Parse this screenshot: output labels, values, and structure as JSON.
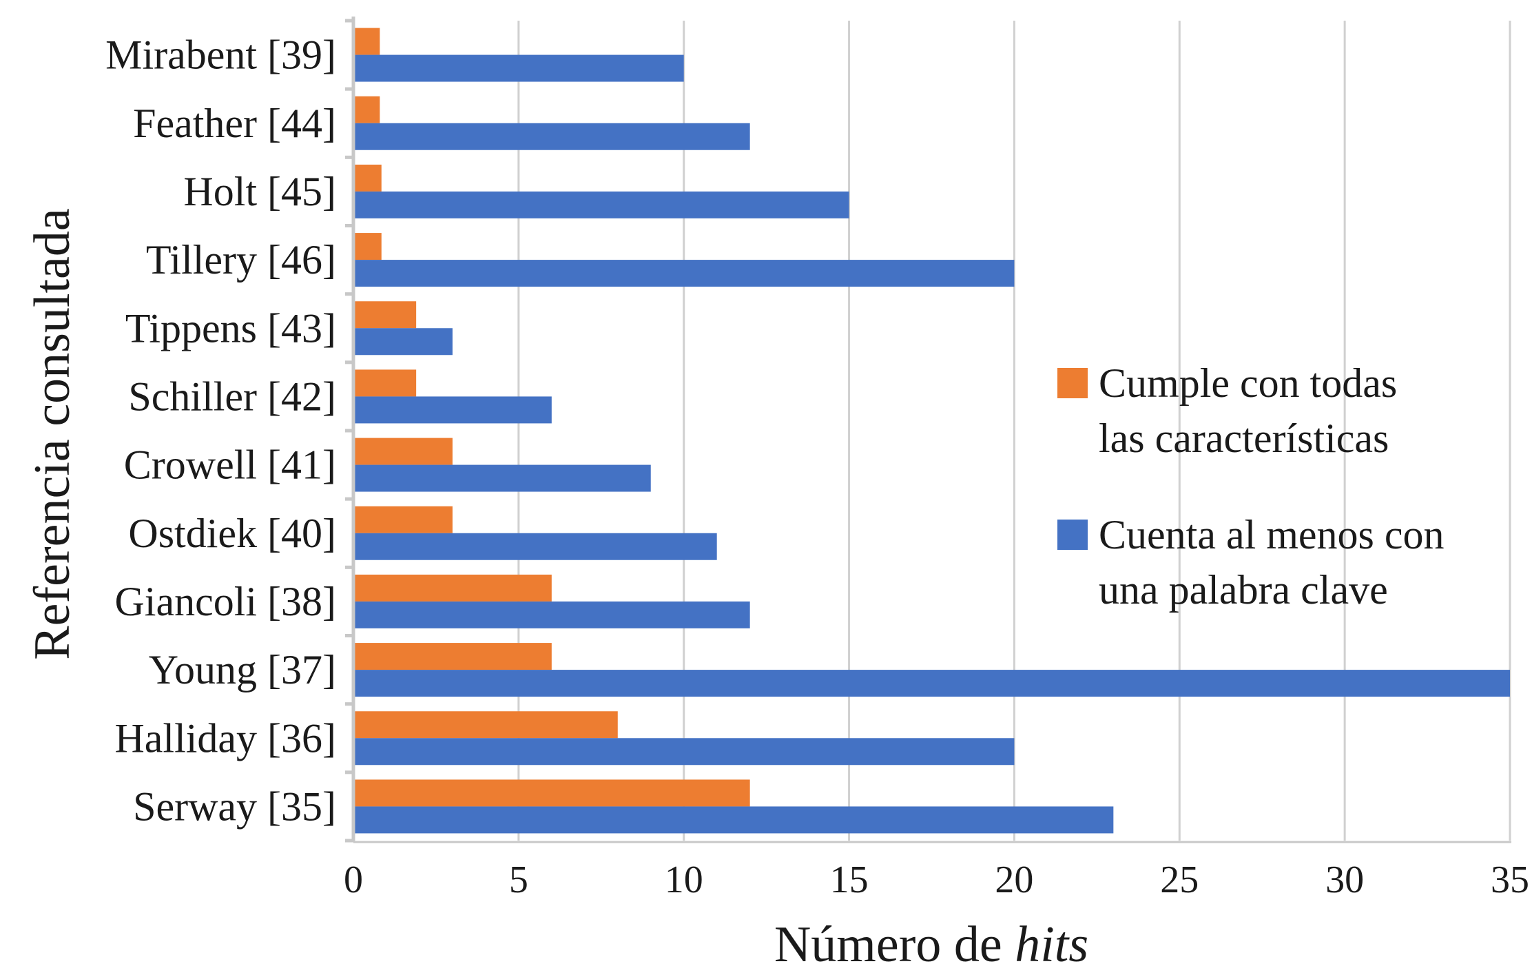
{
  "chart_data": {
    "type": "bar",
    "orientation": "horizontal",
    "categories": [
      "Mirabent [39]",
      "Feather [44]",
      "Holt [45]",
      "Tillery [46]",
      "Tippens [43]",
      "Schiller [42]",
      "Crowell [41]",
      "Ostdiek [40]",
      "Giancoli [38]",
      "Young [37]",
      "Halliday [36]",
      "Serway [35]"
    ],
    "series": [
      {
        "name": "Cumple con todas las características",
        "legend_lines": [
          "Cumple con todas",
          "las características"
        ],
        "color": "#ED7D31",
        "values": [
          0.8,
          0.8,
          0.85,
          0.85,
          1.9,
          1.9,
          3,
          3,
          6,
          6,
          8,
          12
        ]
      },
      {
        "name": "Cuenta al menos con una palabra clave",
        "legend_lines": [
          "Cuenta al menos con",
          "una palabra clave"
        ],
        "color": "#4472C4",
        "values": [
          10,
          12,
          15,
          20,
          3,
          6,
          9,
          11,
          12,
          35,
          20,
          23
        ]
      }
    ],
    "xlabel_plain": "Número de ",
    "xlabel_italic": "hits",
    "ylabel": "Referencia consultada",
    "xlim": [
      0,
      35
    ],
    "xticks": [
      "0",
      "5",
      "10",
      "15",
      "20",
      "25",
      "30",
      "35"
    ],
    "grid": "vertical",
    "legend_position": "right"
  }
}
